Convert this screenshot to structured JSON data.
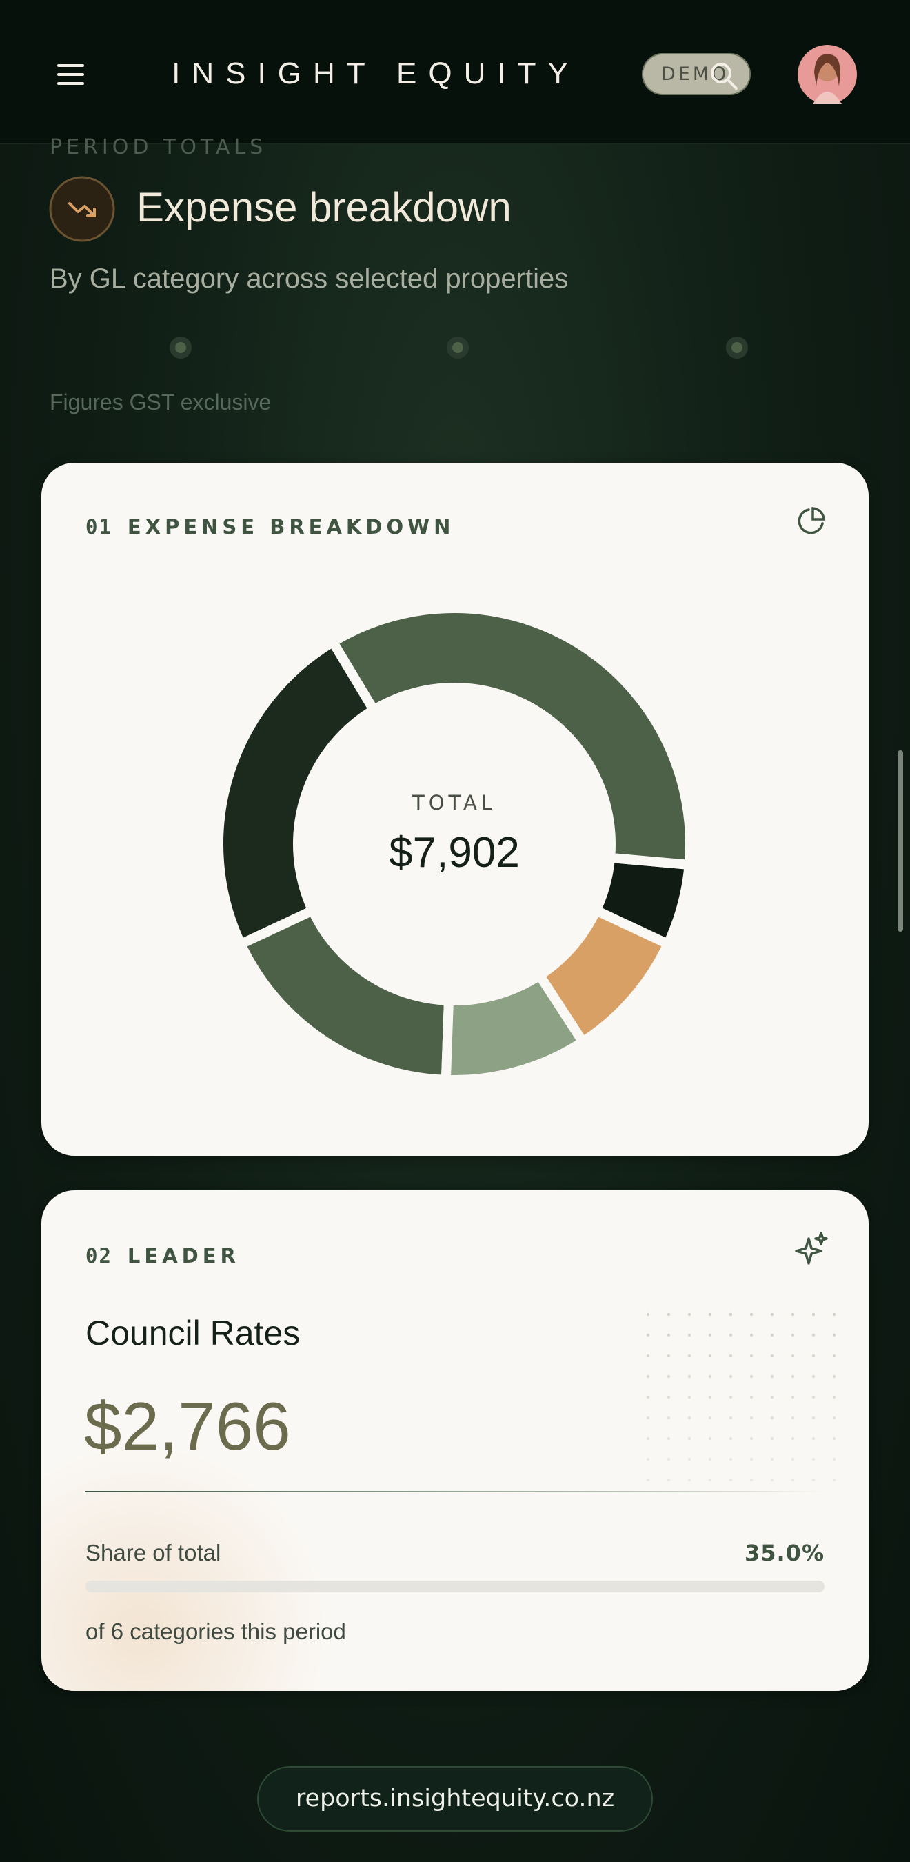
{
  "header": {
    "brand": "INSIGHT EQUITY",
    "badge": "DEMO"
  },
  "section": {
    "eyebrow": "PERIOD TOTALS",
    "title": "Expense breakdown",
    "subtitle": "By GL category across selected properties",
    "note": "Figures GST exclusive"
  },
  "breakdown_card": {
    "number": "01",
    "label": "EXPENSE BREAKDOWN",
    "center_label": "TOTAL",
    "center_value": "$7,902",
    "chart_data": {
      "type": "donut",
      "segments": [
        {
          "value": 2766,
          "color": "#4d6148"
        },
        {
          "value": 440,
          "color": "#101c13"
        },
        {
          "value": 700,
          "color": "#d9a066"
        },
        {
          "value": 770,
          "color": "#8da285"
        },
        {
          "value": 1380,
          "color": "#4d6148"
        },
        {
          "value": 1846,
          "color": "#1b2a1d"
        }
      ]
    }
  },
  "leader_card": {
    "number": "02",
    "label": "LEADER",
    "category": "Council Rates",
    "amount": "$2,766",
    "share_label": "Share of total",
    "share": "35.0%",
    "footnote": "of 6 categories this period"
  },
  "footer": {
    "url": "reports.insightequity.co.nz"
  }
}
